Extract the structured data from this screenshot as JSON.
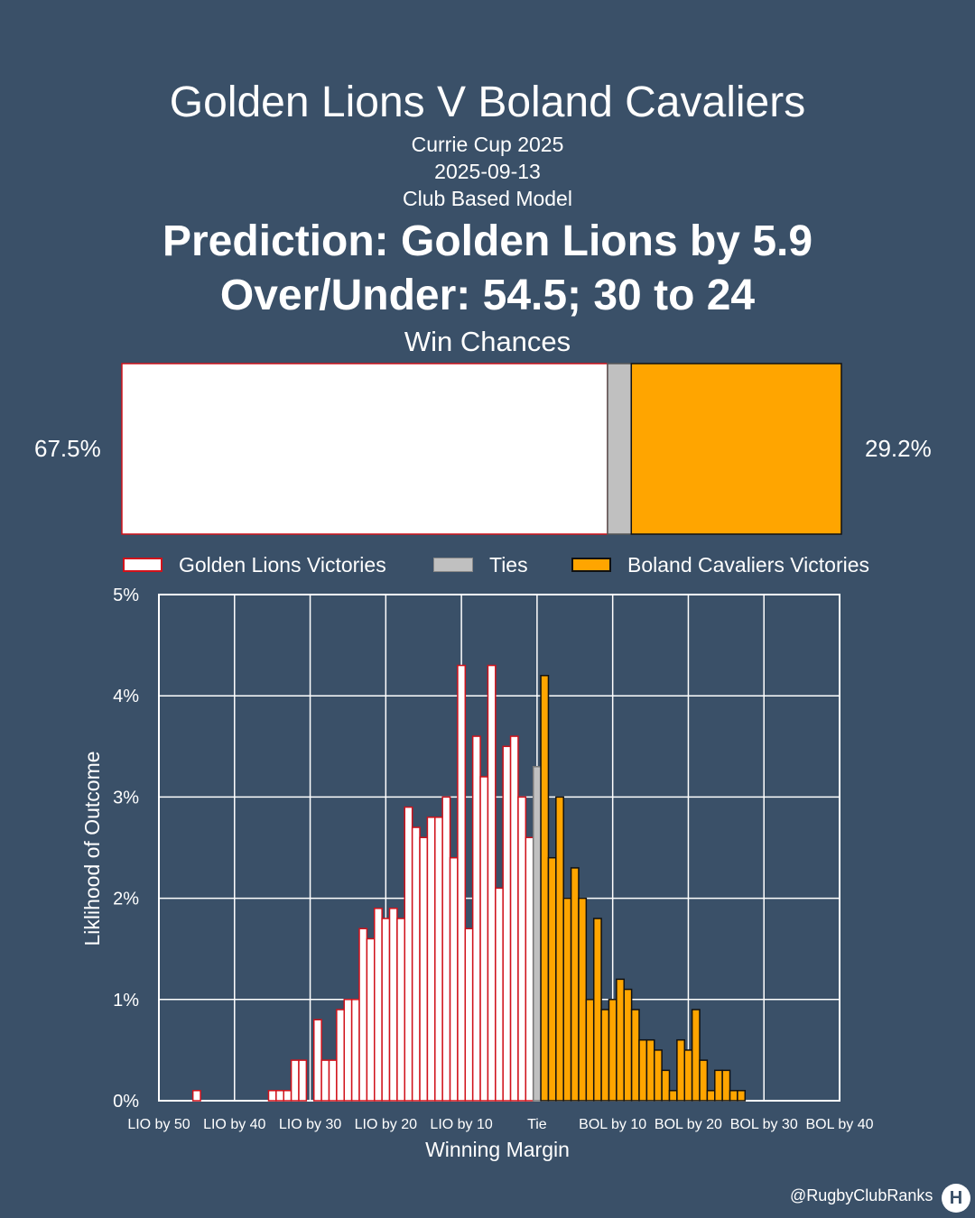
{
  "header": {
    "title": "Golden Lions V Boland Cavaliers",
    "competition": "Currie Cup 2025",
    "date": "2025-09-13",
    "model": "Club Based Model",
    "prediction": "Prediction: Golden Lions by 5.9",
    "over_under": "Over/Under: 54.5; 30 to 24",
    "win_title": "Win Chances"
  },
  "colors": {
    "background": "#3a5068",
    "home_fill": "#ffffff",
    "home_edge": "#d0121b",
    "tie_fill": "#c0c0c0",
    "away_fill": "#ffa500",
    "away_edge": "#111111"
  },
  "footer": {
    "handle": "@RugbyClubRanks",
    "logo_icon": "rugby-posts-icon",
    "logo_glyph": "H"
  },
  "chart_data": [
    {
      "type": "bar",
      "orientation": "horizontal-stacked",
      "title": "Win Chances",
      "home_label": "67.5%",
      "away_label": "29.2%",
      "segments": [
        {
          "name": "Golden Lions Victories",
          "value": 67.5
        },
        {
          "name": "Ties",
          "value": 3.3
        },
        {
          "name": "Boland Cavaliers Victories",
          "value": 29.2
        }
      ]
    },
    {
      "type": "bar",
      "xlabel": "Winning Margin",
      "ylabel": "Liklihood of Outcome",
      "xlim": [
        -50,
        40
      ],
      "ylim": [
        0,
        5
      ],
      "grid": true,
      "legend": "top",
      "x_ticks": [
        {
          "value": -50,
          "label": "LIO by 50"
        },
        {
          "value": -40,
          "label": "LIO by 40"
        },
        {
          "value": -30,
          "label": "LIO by 30"
        },
        {
          "value": -20,
          "label": "LIO by 20"
        },
        {
          "value": -10,
          "label": "LIO by 10"
        },
        {
          "value": 0,
          "label": "Tie"
        },
        {
          "value": 10,
          "label": "BOL by 10"
        },
        {
          "value": 20,
          "label": "BOL by 20"
        },
        {
          "value": 30,
          "label": "BOL by 30"
        },
        {
          "value": 40,
          "label": "BOL by 40"
        }
      ],
      "y_ticks": [
        {
          "value": 0,
          "label": "0%"
        },
        {
          "value": 1,
          "label": "1%"
        },
        {
          "value": 2,
          "label": "2%"
        },
        {
          "value": 3,
          "label": "3%"
        },
        {
          "value": 4,
          "label": "4%"
        },
        {
          "value": 5,
          "label": "5%"
        }
      ],
      "series": [
        {
          "name": "Golden Lions Victories",
          "x": [
            -45,
            -35,
            -34,
            -33,
            -32,
            -31,
            -29,
            -28,
            -27,
            -26,
            -25,
            -24,
            -23,
            -22,
            -21,
            -20,
            -19,
            -18,
            -17,
            -16,
            -15,
            -14,
            -13,
            -12,
            -11,
            -10,
            -9,
            -8,
            -7,
            -6,
            -5,
            -4,
            -3,
            -2,
            -1
          ],
          "values": [
            0.1,
            0.1,
            0.1,
            0.1,
            0.4,
            0.4,
            0.8,
            0.4,
            0.4,
            0.9,
            1.0,
            1.0,
            1.7,
            1.6,
            1.9,
            1.8,
            1.9,
            1.8,
            2.9,
            2.7,
            2.6,
            2.8,
            2.8,
            3.0,
            2.4,
            4.3,
            1.7,
            3.6,
            3.2,
            4.3,
            2.1,
            3.5,
            3.6,
            3.0,
            2.6
          ]
        },
        {
          "name": "Ties",
          "x": [
            0
          ],
          "values": [
            3.3
          ]
        },
        {
          "name": "Boland Cavaliers Victories",
          "x": [
            1,
            2,
            3,
            4,
            5,
            6,
            7,
            8,
            9,
            10,
            11,
            12,
            13,
            14,
            15,
            16,
            17,
            18,
            19,
            20,
            21,
            22,
            23,
            24,
            25,
            26,
            27,
            28,
            29
          ],
          "values": [
            4.2,
            2.4,
            3.0,
            2.0,
            2.3,
            2.0,
            1.0,
            1.8,
            0.9,
            1.0,
            1.2,
            1.1,
            0.9,
            0.6,
            0.6,
            0.5,
            0.3,
            0.1,
            0.6,
            0.5,
            0.9,
            0.4,
            0.1,
            0.3,
            0.3,
            0.1,
            0.1,
            0,
            0
          ]
        }
      ]
    }
  ]
}
